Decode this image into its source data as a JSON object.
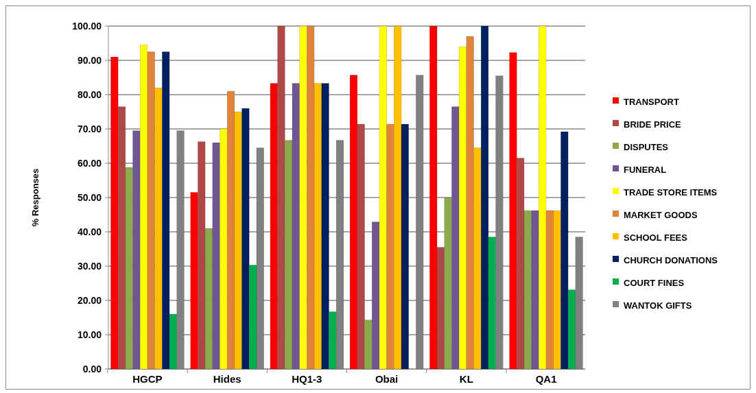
{
  "chart_data": {
    "type": "bar",
    "ylabel": "% Responses",
    "categories": [
      "HGCP",
      "Hides",
      "HQ1-3",
      "Obai",
      "KL",
      "QA1"
    ],
    "series": [
      {
        "name": "TRANSPORT",
        "color": "#ff0000",
        "values": [
          91,
          51.5,
          83.3,
          85.7,
          100,
          92.3
        ]
      },
      {
        "name": "BRIDE PRICE",
        "color": "#b04848",
        "values": [
          76.5,
          66.3,
          100,
          71.4,
          35.5,
          61.5
        ]
      },
      {
        "name": "DISPUTES",
        "color": "#8aaa4c",
        "values": [
          58.8,
          41,
          66.7,
          14.3,
          50,
          46.2
        ]
      },
      {
        "name": "FUNERAL",
        "color": "#715694",
        "values": [
          69.5,
          66,
          83.3,
          42.9,
          76.5,
          46.2
        ]
      },
      {
        "name": "TRADE STORE ITEMS",
        "color": "#ffff00",
        "values": [
          94.5,
          70,
          100,
          100,
          94,
          100
        ]
      },
      {
        "name": "MARKET GOODS",
        "color": "#e0843c",
        "values": [
          92.5,
          81,
          100,
          71.4,
          97,
          46.2
        ]
      },
      {
        "name": "SCHOOL FEES",
        "color": "#ffc000",
        "values": [
          82,
          75,
          83.3,
          100,
          64.5,
          46.2
        ]
      },
      {
        "name": "CHURCH DONATIONS",
        "color": "#002060",
        "values": [
          92.5,
          76,
          83.3,
          71.4,
          100,
          69.2
        ]
      },
      {
        "name": "COURT FINES",
        "color": "#00b050",
        "values": [
          16,
          30.3,
          16.7,
          0,
          38.5,
          23.1
        ]
      },
      {
        "name": "WANTOK GIFTS",
        "color": "#808080",
        "values": [
          69.5,
          64.5,
          66.7,
          85.7,
          85.5,
          38.5
        ]
      }
    ],
    "ylim": [
      0,
      100
    ],
    "yticks": [
      {
        "value": 0,
        "label": "0.00"
      },
      {
        "value": 10,
        "label": "10.00"
      },
      {
        "value": 20,
        "label": "20.00"
      },
      {
        "value": 30,
        "label": "30.00"
      },
      {
        "value": 40,
        "label": "40.00"
      },
      {
        "value": 50,
        "label": "50.00"
      },
      {
        "value": 60,
        "label": "60.00"
      },
      {
        "value": 70,
        "label": "70.00"
      },
      {
        "value": 80,
        "label": "80.00"
      },
      {
        "value": 90,
        "label": "90.00"
      },
      {
        "value": 100,
        "label": "100.00"
      }
    ],
    "grid": "y",
    "legend": "right"
  }
}
